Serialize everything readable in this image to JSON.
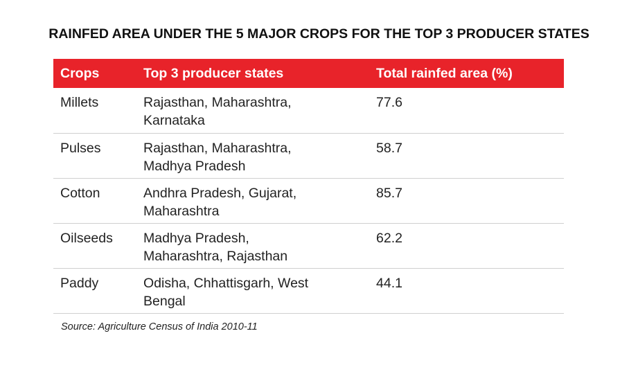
{
  "chart_data": {
    "type": "table",
    "title": "RAINFED AREA UNDER THE 5 MAJOR CROPS FOR THE TOP 3 PRODUCER STATES",
    "columns": [
      "Crops",
      "Top 3 producer states",
      "Total rainfed area (%)"
    ],
    "rows": [
      {
        "crop": "Millets",
        "states_line1": "Rajasthan, Maharashtra,",
        "states_line2": "Karnataka",
        "rainfed_area": 77.6
      },
      {
        "crop": "Pulses",
        "states_line1": "Rajasthan, Maharashtra,",
        "states_line2": "Madhya Pradesh",
        "rainfed_area": 58.7
      },
      {
        "crop": "Cotton",
        "states_line1": "Andhra Pradesh, Gujarat,",
        "states_line2": "Maharashtra",
        "rainfed_area": 85.7
      },
      {
        "crop": "Oilseeds",
        "states_line1": "Madhya Pradesh,",
        "states_line2": "Maharashtra, Rajasthan",
        "rainfed_area": 62.2
      },
      {
        "crop": "Paddy",
        "states_line1": "Odisha, Chhattisgarh, West",
        "states_line2": "Bengal",
        "rainfed_area": 44.1
      }
    ],
    "source": "Source: Agriculture Census of India 2010-11"
  },
  "colors": {
    "header_background": "#e8232a",
    "header_text": "#ffffff",
    "row_divider": "#cfcfcf"
  }
}
